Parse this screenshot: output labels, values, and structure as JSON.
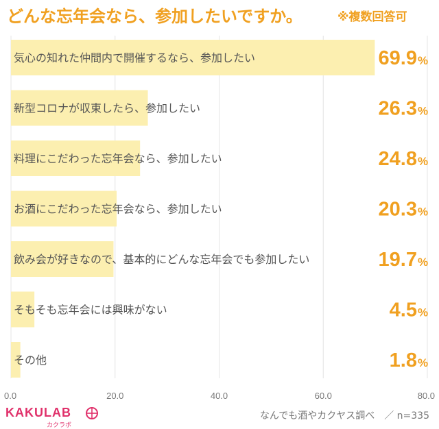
{
  "header": {
    "title": "どんな忘年会なら、参加したいですか。",
    "note": "※複数回答可"
  },
  "footer": {
    "source": "なんでも酒やカクヤス調べ　／ n=335",
    "logo": {
      "text": "KAKULAB",
      "sub": "カクラボ"
    }
  },
  "colors": {
    "bar": "#fcefb0",
    "value_text": "#f0a020",
    "label_text": "#555555",
    "axis_text": "#777777",
    "accent": "#e0306a"
  },
  "chart_data": {
    "type": "bar",
    "orientation": "horizontal",
    "categories": [
      "気心の知れた仲間内で開催するなら、参加したい",
      "新型コロナが収束したら、参加したい",
      "料理にこだわった忘年会なら、参加したい",
      "お酒にこだわった忘年会なら、参加したい",
      "飲み会が好きなので、基本的にどんな忘年会でも参加したい",
      "そもそも忘年会には興味がない",
      "その他"
    ],
    "values": [
      69.9,
      26.3,
      24.8,
      20.3,
      19.7,
      4.5,
      1.8
    ],
    "value_labels": [
      "69.9",
      "26.3",
      "24.8",
      "20.3",
      "19.7",
      "4.5",
      "1.8"
    ],
    "unit": "%",
    "xlim": [
      0,
      80
    ],
    "xticks": [
      0,
      20,
      40,
      60,
      80
    ],
    "xtick_labels": [
      "0.0",
      "20.0",
      "40.0",
      "60.0",
      "80.0"
    ],
    "grid": true
  }
}
